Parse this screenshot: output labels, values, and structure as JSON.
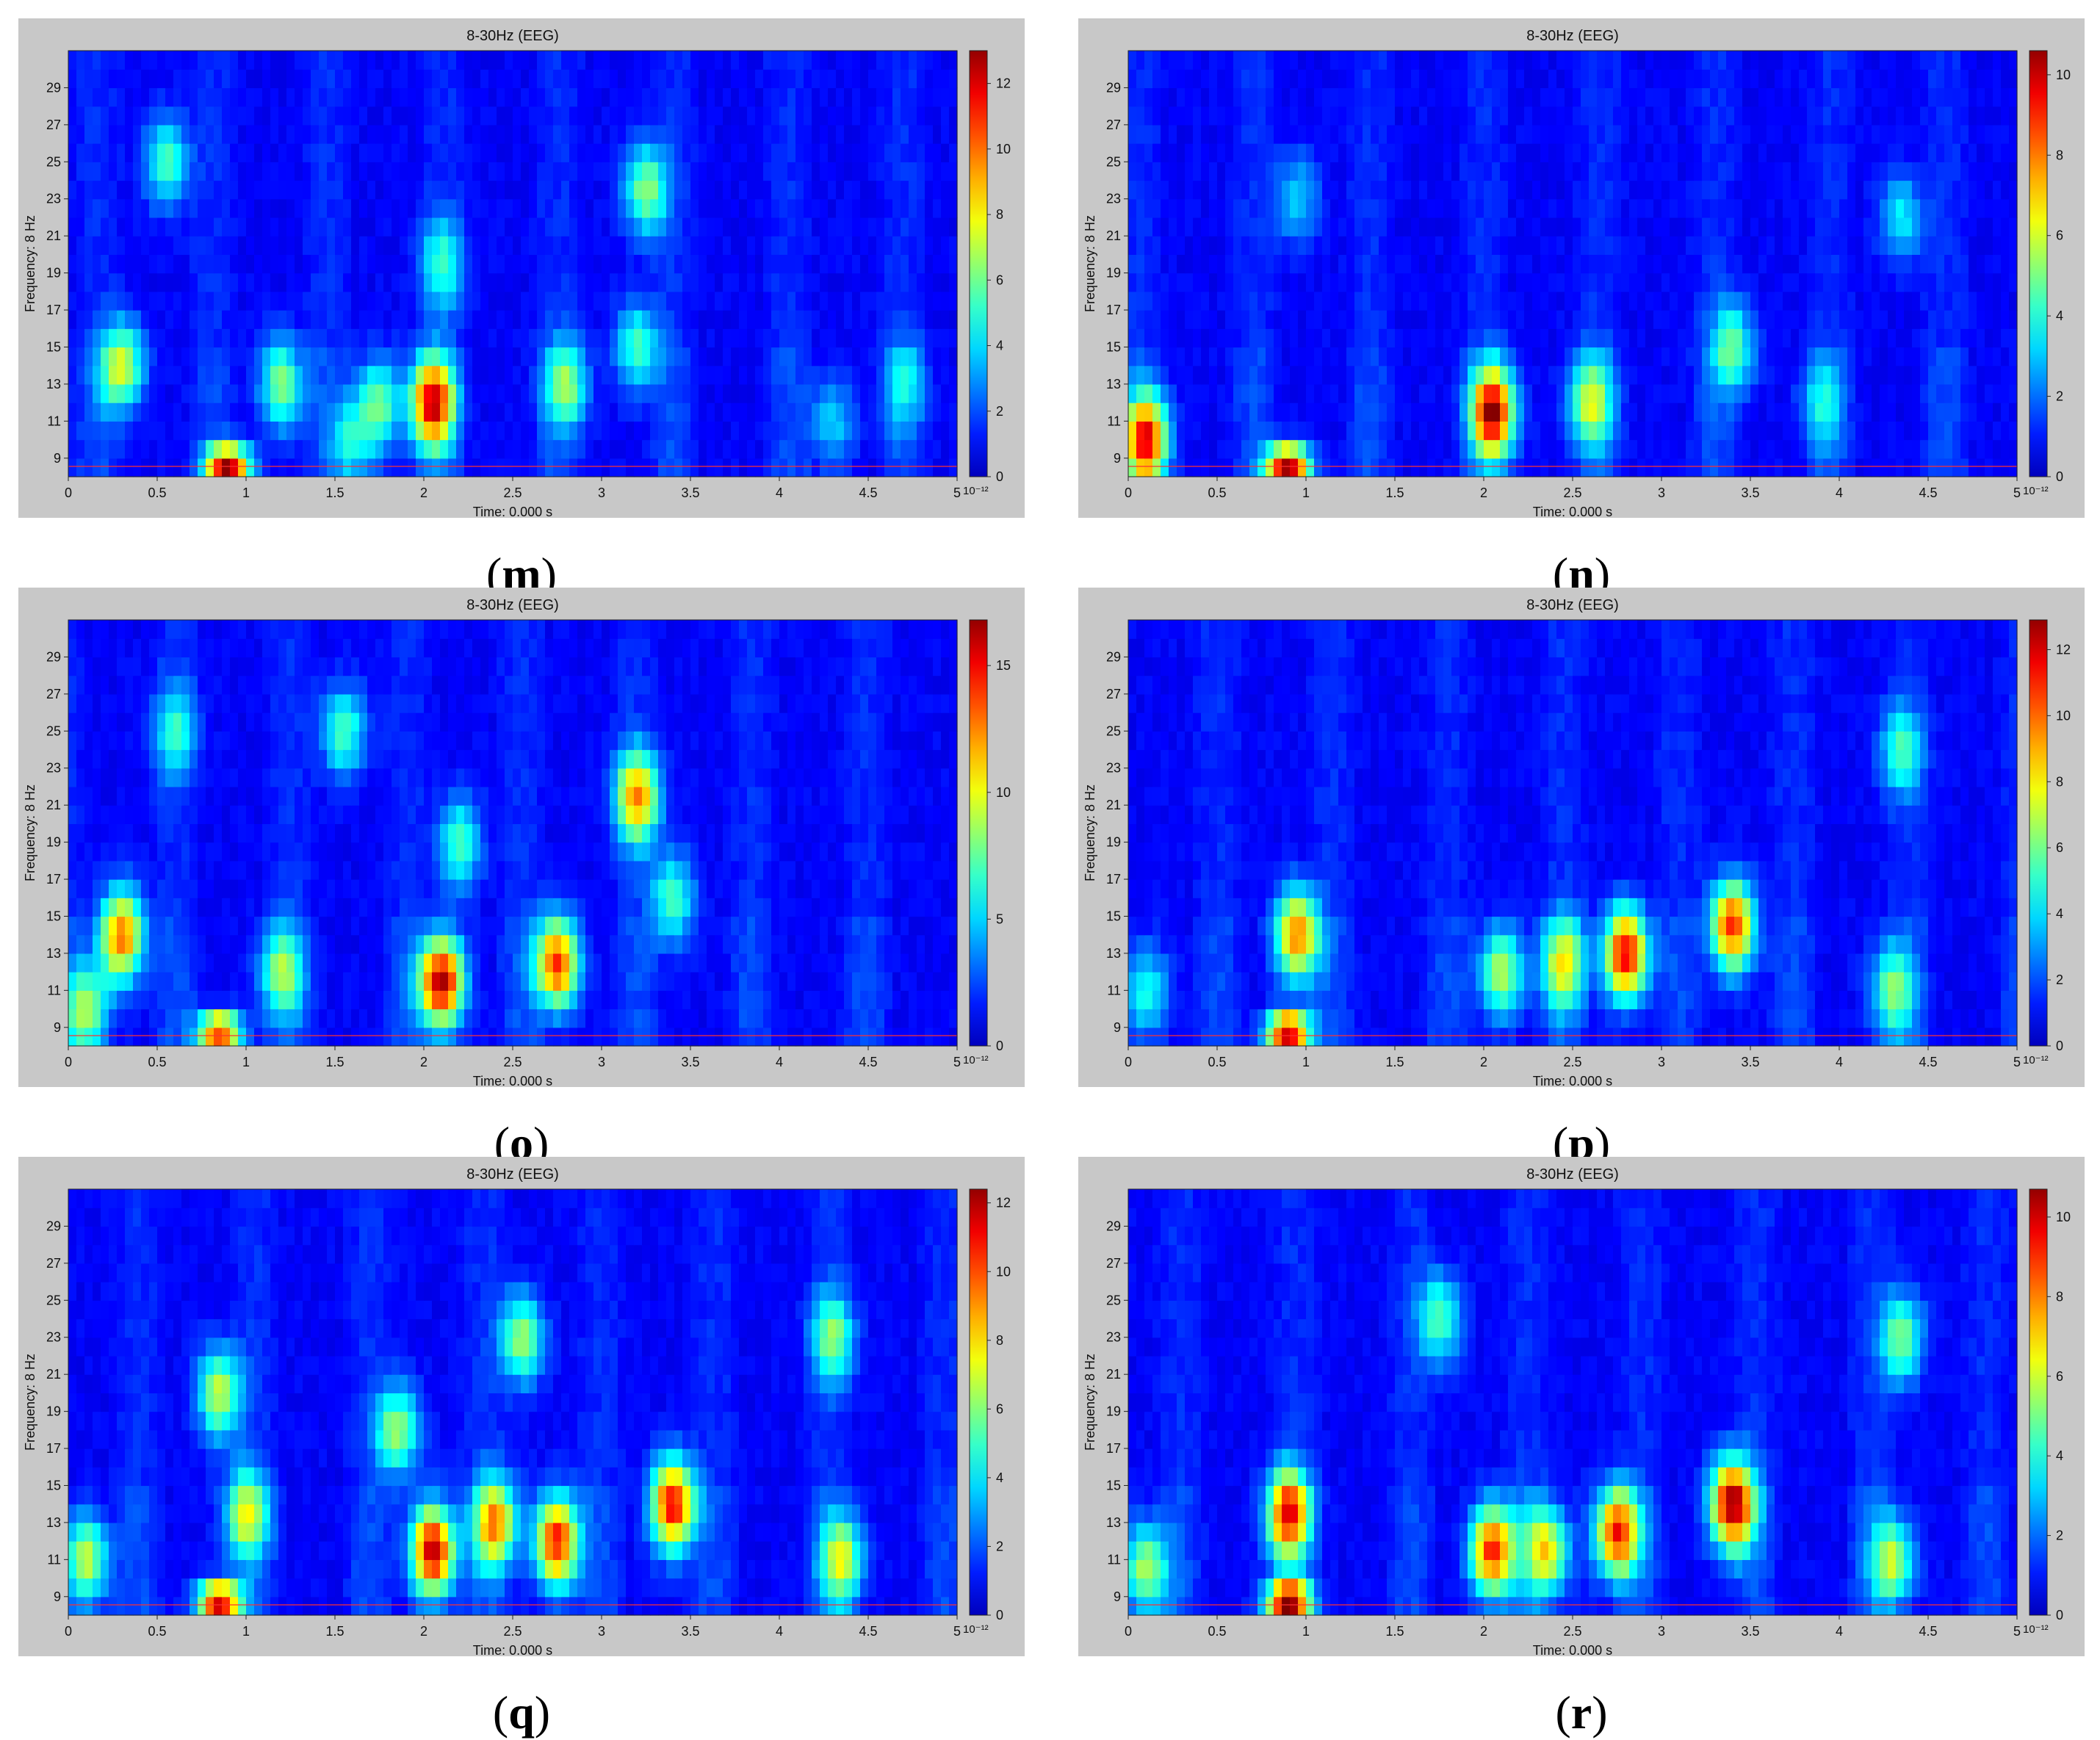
{
  "figure": {
    "panels": [
      {
        "id": "m",
        "letter": "m",
        "title": "8-30Hz (EEG)",
        "colorbar": {
          "max": 13,
          "ticks": [
            "0",
            "2",
            "4",
            "6",
            "8",
            "10",
            "12"
          ],
          "exponent": "10⁻¹²"
        }
      },
      {
        "id": "n",
        "letter": "n",
        "title": "8-30Hz (EEG)",
        "colorbar": {
          "max": 10.6,
          "ticks": [
            "0",
            "2",
            "4",
            "6",
            "8",
            "10"
          ],
          "exponent": "10⁻¹²"
        }
      },
      {
        "id": "o",
        "letter": "o",
        "title": "8-30Hz (EEG)",
        "colorbar": {
          "max": 16.8,
          "ticks": [
            "0",
            "5",
            "10",
            "15"
          ],
          "exponent": "10⁻¹²"
        }
      },
      {
        "id": "p",
        "letter": "p",
        "title": "8-30Hz (EEG)",
        "colorbar": {
          "max": 12.9,
          "ticks": [
            "0",
            "2",
            "4",
            "6",
            "8",
            "10",
            "12"
          ],
          "exponent": "10⁻¹²"
        }
      },
      {
        "id": "q",
        "letter": "q",
        "title": "8-30Hz (EEG)",
        "colorbar": {
          "max": 12.4,
          "ticks": [
            "0",
            "2",
            "4",
            "6",
            "8",
            "10",
            "12"
          ],
          "exponent": "10⁻¹²"
        }
      },
      {
        "id": "r",
        "letter": "r",
        "title": "8-30Hz (EEG)",
        "colorbar": {
          "max": 10.7,
          "ticks": [
            "0",
            "2",
            "4",
            "6",
            "8",
            "10"
          ],
          "exponent": "10⁻¹²"
        }
      }
    ]
  },
  "chart_data": [
    {
      "panel": "m",
      "type": "heatmap",
      "title": "8-30Hz (EEG)",
      "xlabel": "Time: 0.000 s",
      "ylabel": "Frequency: 8 Hz",
      "xlim": [
        0,
        5
      ],
      "ylim": [
        8,
        31
      ],
      "x_ticks": [
        "0",
        "0.5",
        "1",
        "1.5",
        "2",
        "2.5",
        "3",
        "3.5",
        "4",
        "4.5",
        "5"
      ],
      "y_ticks": [
        "9",
        "11",
        "13",
        "15",
        "17",
        "19",
        "21",
        "23",
        "25",
        "27",
        "29"
      ],
      "colormap": "jet",
      "zlim": [
        0,
        13
      ],
      "zscale_exponent": -12,
      "hotspots": [
        {
          "t": 0.9,
          "f": 8.7,
          "v": 12.2
        },
        {
          "t": 2.05,
          "f": 12,
          "v": 11.0
        },
        {
          "t": 0.3,
          "f": 14,
          "v": 6.5
        },
        {
          "t": 0.55,
          "f": 25,
          "v": 4.5
        },
        {
          "t": 1.2,
          "f": 13,
          "v": 5.5
        },
        {
          "t": 1.75,
          "f": 12,
          "v": 5.0
        },
        {
          "t": 2.8,
          "f": 13,
          "v": 5.0
        },
        {
          "t": 3.25,
          "f": 23.5,
          "v": 5.5
        },
        {
          "t": 3.2,
          "f": 15,
          "v": 4.5
        },
        {
          "t": 2.1,
          "f": 19.5,
          "v": 4.0
        },
        {
          "t": 1.6,
          "f": 10,
          "v": 3.5
        },
        {
          "t": 4.7,
          "f": 13,
          "v": 3.0
        },
        {
          "t": 4.3,
          "f": 11,
          "v": 3.0
        }
      ]
    },
    {
      "panel": "n",
      "type": "heatmap",
      "title": "8-30Hz (EEG)",
      "xlabel": "Time: 0.000 s",
      "ylabel": "Frequency: 8 Hz",
      "xlim": [
        0,
        5
      ],
      "ylim": [
        8,
        31
      ],
      "x_ticks": [
        "0",
        "0.5",
        "1",
        "1.5",
        "2",
        "2.5",
        "3",
        "3.5",
        "4",
        "4.5",
        "5"
      ],
      "y_ticks": [
        "9",
        "11",
        "13",
        "15",
        "17",
        "19",
        "21",
        "23",
        "25",
        "27",
        "29"
      ],
      "colormap": "jet",
      "zlim": [
        0,
        10.6
      ],
      "zscale_exponent": -12,
      "hotspots": [
        {
          "t": 0.9,
          "f": 8.7,
          "v": 10.4
        },
        {
          "t": 2.05,
          "f": 11.5,
          "v": 9.5
        },
        {
          "t": 0.1,
          "f": 10,
          "v": 8.5
        },
        {
          "t": 2.6,
          "f": 12,
          "v": 5.0
        },
        {
          "t": 3.4,
          "f": 15,
          "v": 4.0
        },
        {
          "t": 4.35,
          "f": 22,
          "v": 2.8
        },
        {
          "t": 0.95,
          "f": 23,
          "v": 2.5
        },
        {
          "t": 3.9,
          "f": 12,
          "v": 2.5
        }
      ]
    },
    {
      "panel": "o",
      "type": "heatmap",
      "title": "8-30Hz (EEG)",
      "xlabel": "Time: 0.000 s",
      "ylabel": "Frequency: 8 Hz",
      "xlim": [
        0,
        5
      ],
      "ylim": [
        8,
        31
      ],
      "x_ticks": [
        "0",
        "0.5",
        "1",
        "1.5",
        "2",
        "2.5",
        "3",
        "3.5",
        "4",
        "4.5",
        "5"
      ],
      "y_ticks": [
        "9",
        "11",
        "13",
        "15",
        "17",
        "19",
        "21",
        "23",
        "25",
        "27",
        "29"
      ],
      "colormap": "jet",
      "zlim": [
        0,
        16.8
      ],
      "zscale_exponent": -12,
      "hotspots": [
        {
          "t": 0.85,
          "f": 8.8,
          "v": 14.0
        },
        {
          "t": 2.1,
          "f": 11.5,
          "v": 15.5
        },
        {
          "t": 2.75,
          "f": 12.5,
          "v": 13.0
        },
        {
          "t": 0.3,
          "f": 14,
          "v": 12.0
        },
        {
          "t": 3.2,
          "f": 21.5,
          "v": 11.0
        },
        {
          "t": 0.1,
          "f": 10,
          "v": 8.0
        },
        {
          "t": 1.2,
          "f": 12,
          "v": 7.0
        },
        {
          "t": 1.55,
          "f": 25,
          "v": 6.0
        },
        {
          "t": 3.4,
          "f": 16,
          "v": 6.0
        },
        {
          "t": 2.2,
          "f": 19,
          "v": 6.0
        },
        {
          "t": 0.6,
          "f": 25,
          "v": 5.0
        }
      ]
    },
    {
      "panel": "p",
      "type": "heatmap",
      "title": "8-30Hz (EEG)",
      "xlabel": "Time: 0.000 s",
      "ylabel": "Frequency: 8 Hz",
      "xlim": [
        0,
        5
      ],
      "ylim": [
        8,
        31
      ],
      "x_ticks": [
        "0",
        "0.5",
        "1",
        "1.5",
        "2",
        "2.5",
        "3",
        "3.5",
        "4",
        "4.5",
        "5"
      ],
      "y_ticks": [
        "9",
        "11",
        "13",
        "15",
        "17",
        "19",
        "21",
        "23",
        "25",
        "27",
        "29"
      ],
      "colormap": "jet",
      "zlim": [
        0,
        12.9
      ],
      "zscale_exponent": -12,
      "hotspots": [
        {
          "t": 0.9,
          "f": 8.8,
          "v": 12.4
        },
        {
          "t": 2.8,
          "f": 13,
          "v": 11.0
        },
        {
          "t": 3.4,
          "f": 14.5,
          "v": 10.0
        },
        {
          "t": 0.95,
          "f": 14,
          "v": 9.0
        },
        {
          "t": 2.1,
          "f": 12,
          "v": 6.0
        },
        {
          "t": 2.45,
          "f": 12.5,
          "v": 6.5
        },
        {
          "t": 4.3,
          "f": 11,
          "v": 5.0
        },
        {
          "t": 4.35,
          "f": 24,
          "v": 4.0
        },
        {
          "t": 0.1,
          "f": 11,
          "v": 4.0
        }
      ]
    },
    {
      "panel": "q",
      "type": "heatmap",
      "title": "8-30Hz (EEG)",
      "xlabel": "Time: 0.000 s",
      "ylabel": "Frequency: 8 Hz",
      "xlim": [
        0,
        5
      ],
      "ylim": [
        8,
        31
      ],
      "x_ticks": [
        "0",
        "0.5",
        "1",
        "1.5",
        "2",
        "2.5",
        "3",
        "3.5",
        "4",
        "4.5",
        "5"
      ],
      "y_ticks": [
        "9",
        "11",
        "13",
        "15",
        "17",
        "19",
        "21",
        "23",
        "25",
        "27",
        "29"
      ],
      "colormap": "jet",
      "zlim": [
        0,
        12.4
      ],
      "zscale_exponent": -12,
      "hotspots": [
        {
          "t": 0.85,
          "f": 8.8,
          "v": 11.5
        },
        {
          "t": 2.05,
          "f": 11.5,
          "v": 11.0
        },
        {
          "t": 2.75,
          "f": 12,
          "v": 10.0
        },
        {
          "t": 3.4,
          "f": 14,
          "v": 10.5
        },
        {
          "t": 2.4,
          "f": 13,
          "v": 8.0
        },
        {
          "t": 4.35,
          "f": 11,
          "v": 6.0
        },
        {
          "t": 0.1,
          "f": 11,
          "v": 6.0
        },
        {
          "t": 0.85,
          "f": 20,
          "v": 6.0
        },
        {
          "t": 1.0,
          "f": 13.5,
          "v": 6.0
        },
        {
          "t": 2.55,
          "f": 23,
          "v": 5.5
        },
        {
          "t": 4.3,
          "f": 23,
          "v": 5.0
        },
        {
          "t": 1.85,
          "f": 18,
          "v": 5.5
        }
      ]
    },
    {
      "panel": "r",
      "type": "heatmap",
      "title": "8-30Hz (EEG)",
      "xlabel": "Time: 0.000 s",
      "ylabel": "Frequency: 8 Hz",
      "xlim": [
        0,
        5
      ],
      "ylim": [
        8,
        31
      ],
      "x_ticks": [
        "0",
        "0.5",
        "1",
        "1.5",
        "2",
        "2.5",
        "3",
        "3.5",
        "4",
        "4.5",
        "5"
      ],
      "y_ticks": [
        "9",
        "11",
        "13",
        "15",
        "17",
        "19",
        "21",
        "23",
        "25",
        "27",
        "29"
      ],
      "colormap": "jet",
      "zlim": [
        0,
        10.7
      ],
      "zscale_exponent": -12,
      "hotspots": [
        {
          "t": 0.9,
          "f": 8.8,
          "v": 10.5
        },
        {
          "t": 3.4,
          "f": 14,
          "v": 10.0
        },
        {
          "t": 0.9,
          "f": 13.5,
          "v": 8.5
        },
        {
          "t": 2.05,
          "f": 11.5,
          "v": 8.5
        },
        {
          "t": 2.75,
          "f": 12.5,
          "v": 8.5
        },
        {
          "t": 2.35,
          "f": 11.5,
          "v": 6.0
        },
        {
          "t": 0.1,
          "f": 10.5,
          "v": 5.0
        },
        {
          "t": 4.3,
          "f": 11,
          "v": 5.0
        },
        {
          "t": 4.35,
          "f": 23,
          "v": 4.5
        },
        {
          "t": 1.75,
          "f": 24,
          "v": 4.0
        }
      ]
    }
  ]
}
